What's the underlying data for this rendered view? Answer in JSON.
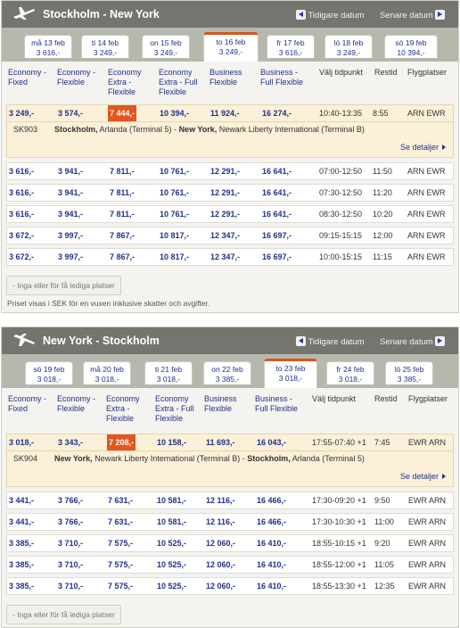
{
  "outbound": {
    "title": "Stockholm - New York",
    "prev_label": "Tidigare datum",
    "next_label": "Senare datum",
    "tabs": [
      {
        "date": "må 13 feb",
        "price": "3 616,-"
      },
      {
        "date": "ti 14 feb",
        "price": "3 249,-"
      },
      {
        "date": "on 15 feb",
        "price": "3 249,-"
      },
      {
        "date": "to 16 feb",
        "price": "3 249,-"
      },
      {
        "date": "fr 17 feb",
        "price": "3 616,-"
      },
      {
        "date": "lö 18 feb",
        "price": "3 249,-"
      },
      {
        "date": "sö 19 feb",
        "price": "10 394,-"
      }
    ],
    "columns": [
      "Economy - Fixed",
      "Economy - Flexible",
      "Economy Extra - Flexible",
      "Economy Extra - Full Flexible",
      "Business Flexible",
      "Business - Full Flexible",
      "Välj tidpunkt",
      "Restid",
      "Flygplatser"
    ],
    "rows": [
      {
        "p1": "3 249,-",
        "p2": "3 574,-",
        "p3": "7 444,-",
        "p4": "10 394,-",
        "p5": "11 924,-",
        "p6": "16 274,-",
        "time": "10:40-13:35",
        "dur": "8:55",
        "airports": "ARN EWR"
      },
      {
        "p1": "3 616,-",
        "p2": "3 941,-",
        "p3": "7 811,-",
        "p4": "10 761,-",
        "p5": "12 291,-",
        "p6": "16 641,-",
        "time": "07:00-12:50",
        "dur": "11:50",
        "airports": "ARN EWR"
      },
      {
        "p1": "3 616,-",
        "p2": "3 941,-",
        "p3": "7 811,-",
        "p4": "10 761,-",
        "p5": "12 291,-",
        "p6": "16 641,-",
        "time": "07:30-12:50",
        "dur": "11:20",
        "airports": "ARN EWR"
      },
      {
        "p1": "3 616,-",
        "p2": "3 941,-",
        "p3": "7 811,-",
        "p4": "10 761,-",
        "p5": "12 291,-",
        "p6": "16 641,-",
        "time": "08:30-12:50",
        "dur": "10:20",
        "airports": "ARN EWR"
      },
      {
        "p1": "3 672,-",
        "p2": "3 997,-",
        "p3": "7 867,-",
        "p4": "10 817,-",
        "p5": "12 347,-",
        "p6": "16 697,-",
        "time": "09:15-15:15",
        "dur": "12:00",
        "airports": "ARN EWR"
      },
      {
        "p1": "3 672,-",
        "p2": "3 997,-",
        "p3": "7 867,-",
        "p4": "10 817,-",
        "p5": "12 347,-",
        "p6": "16 697,-",
        "time": "10:00-15:15",
        "dur": "11:15",
        "airports": "ARN EWR"
      }
    ],
    "detail": {
      "flight": "SK903",
      "from_city": "Stockholm,",
      "from_airport": " Arlanda (Terminal 5)",
      "sep": " - ",
      "to_city": "New York,",
      "to_airport": " Newark Liberty International (Terminal B)",
      "more": "Se detaljer"
    },
    "no_seats": "- Inga eller för få lediga platser",
    "note": "Priset visas i SEK för en vuxen inklusive skatter och avgifter."
  },
  "inbound": {
    "title": "New York - Stockholm",
    "prev_label": "Tidigare datum",
    "next_label": "Senare datum",
    "tabs": [
      {
        "date": "sö 19 feb",
        "price": "3 018,-"
      },
      {
        "date": "må 20 feb",
        "price": "3 018,-"
      },
      {
        "date": "ti 21 feb",
        "price": "3 018,-"
      },
      {
        "date": "on 22 feb",
        "price": "3 385,-"
      },
      {
        "date": "to 23 feb",
        "price": "3 018,-"
      },
      {
        "date": "fr 24 feb",
        "price": "3 018,-"
      },
      {
        "date": "lö 25 feb",
        "price": "3 385,-"
      }
    ],
    "columns": [
      "Economy - Fixed",
      "Economy - Flexible",
      "Economy Extra - Flexible",
      "Economy Extra - Full Flexible",
      "Business Flexible",
      "Business - Full Flexible",
      "Välj tidpunkt",
      "Restid",
      "Flygplatser"
    ],
    "rows": [
      {
        "p1": "3 018,-",
        "p2": "3 343,-",
        "p3": "7 208,-",
        "p4": "10 158,-",
        "p5": "11 693,-",
        "p6": "16 043,-",
        "time": "17:55-07:40 +1",
        "dur": "7:45",
        "airports": "EWR ARN"
      },
      {
        "p1": "3 441,-",
        "p2": "3 766,-",
        "p3": "7 631,-",
        "p4": "10 581,-",
        "p5": "12 116,-",
        "p6": "16 466,-",
        "time": "17:30-09:20 +1",
        "dur": "9:50",
        "airports": "EWR ARN"
      },
      {
        "p1": "3 441,-",
        "p2": "3 766,-",
        "p3": "7 631,-",
        "p4": "10 581,-",
        "p5": "12 116,-",
        "p6": "16 466,-",
        "time": "17:30-10:30 +1",
        "dur": "11:00",
        "airports": "EWR ARN"
      },
      {
        "p1": "3 385,-",
        "p2": "3 710,-",
        "p3": "7 575,-",
        "p4": "10 525,-",
        "p5": "12 060,-",
        "p6": "16 410,-",
        "time": "18:55-10:15 +1",
        "dur": "9:20",
        "airports": "EWR ARN"
      },
      {
        "p1": "3 385,-",
        "p2": "3 710,-",
        "p3": "7 575,-",
        "p4": "10 525,-",
        "p5": "12 060,-",
        "p6": "16 410,-",
        "time": "18:55-12:00 +1",
        "dur": "11:05",
        "airports": "EWR ARN"
      },
      {
        "p1": "3 385,-",
        "p2": "3 710,-",
        "p3": "7 575,-",
        "p4": "10 525,-",
        "p5": "12 060,-",
        "p6": "16 410,-",
        "time": "18:55-13:30 +1",
        "dur": "12:35",
        "airports": "EWR ARN"
      }
    ],
    "detail": {
      "flight": "SK904",
      "from_city": "New York,",
      "from_airport": " Newark Liberty International (Terminal B)",
      "sep": " - ",
      "to_city": "Stockholm,",
      "to_airport": " Arlanda (Terminal 5)",
      "more": "Se detaljer"
    },
    "no_seats": "- Inga eller för få lediga platser"
  },
  "colors": {
    "header": "#757570",
    "tab_strip": "#b7b8ad",
    "accent": "#e2561f",
    "link": "#21308a",
    "selected_row": "#fbf0d8"
  },
  "icons": {
    "plane": "airplane-icon",
    "prev": "arrow-left-icon",
    "next": "arrow-right-icon",
    "more": "triangle-right-icon"
  }
}
